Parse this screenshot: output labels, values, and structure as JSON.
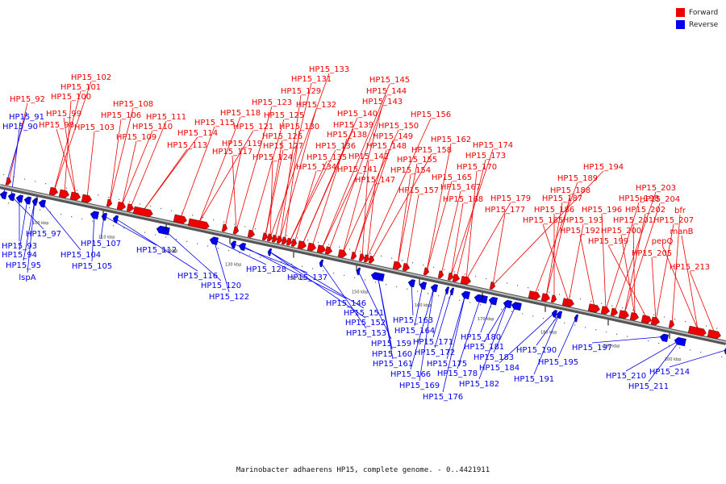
{
  "legend": [
    {
      "label": "Forward",
      "color": "#ee0000"
    },
    {
      "label": "Reverse",
      "color": "#0000ee"
    }
  ],
  "caption": "Marinobacter adhaerens HP15, complete genome. - 0..4421911",
  "colors": {
    "forward": "#ee0000",
    "reverse": "#0000ee",
    "backbone": "#8a8a8a"
  },
  "ticks": [
    "100 kbp",
    "110 kbp",
    "120 kbp",
    "130 kbp",
    "140 kbp",
    "150 kbp",
    "160 kbp",
    "170 kbp",
    "180 kbp",
    "190 kbp",
    "200 kbp"
  ],
  "forward_labels": [
    "HP15_92",
    "HP15_102",
    "HP15_101",
    "HP15_100",
    "HP15_99",
    "HP15_98",
    "HP15_103",
    "HP15_108",
    "HP15_106",
    "HP15_109",
    "HP15_110",
    "HP15_111",
    "HP15_114",
    "HP15_113",
    "HP15_115",
    "HP15_118",
    "HP15_121",
    "HP15_119",
    "HP15_117",
    "HP15_123",
    "HP15_125",
    "HP15_126",
    "HP15_127",
    "HP15_124",
    "HP15_133",
    "HP15_131",
    "HP15_129",
    "HP15_132",
    "HP15_130",
    "HP15_136",
    "HP15_135",
    "HP15_134",
    "HP15_140",
    "HP15_139",
    "HP15_138",
    "HP15_141",
    "HP15_145",
    "HP15_144",
    "HP15_143",
    "HP15_150",
    "HP15_149",
    "HP15_148",
    "HP15_142",
    "HP15_147",
    "HP15_156",
    "HP15_158",
    "HP15_155",
    "HP15_154",
    "HP15_157",
    "HP15_162",
    "HP15_165",
    "HP15_167",
    "HP15_168",
    "HP15_174",
    "HP15_173",
    "HP15_170",
    "HP15_179",
    "HP15_177",
    "HP15_194",
    "HP15_189",
    "HP15_188",
    "HP15_187",
    "HP15_186",
    "HP15_185",
    "HP15_193",
    "HP15_192",
    "HP15_196",
    "HP15_198",
    "HP15_203",
    "HP15_204",
    "HP15_202",
    "HP15_201",
    "HP15_200",
    "HP15_199",
    "HP15_207",
    "HP15_205",
    "bfr",
    "manB",
    "pepQ",
    "HP15_213"
  ],
  "reverse_labels": [
    "HP15_91",
    "HP15_90",
    "HP15_97",
    "HP15_93",
    "HP15_94",
    "HP15_95",
    "lspA",
    "HP15_104",
    "HP15_105",
    "HP15_107",
    "HP15_112",
    "HP15_116",
    "HP15_120",
    "HP15_122",
    "HP15_128",
    "HP15_137",
    "HP15_146",
    "HP15_151",
    "HP15_152",
    "HP15_153",
    "HP15_159",
    "HP15_160",
    "HP15_161",
    "HP15_163",
    "HP15_164",
    "HP15_166",
    "HP15_169",
    "HP15_171",
    "HP15_172",
    "HP15_175",
    "HP15_176",
    "HP15_178",
    "HP15_180",
    "HP15_181",
    "HP15_182",
    "HP15_183",
    "HP15_184",
    "HP15_190",
    "HP15_191",
    "HP15_195",
    "HP15_197",
    "HP15_210",
    "HP15_211",
    "HP15_214"
  ]
}
